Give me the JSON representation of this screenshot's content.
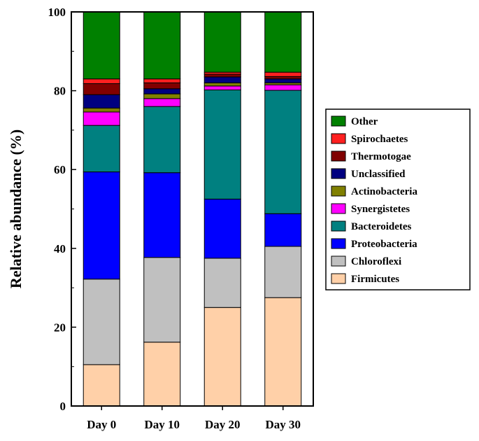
{
  "chart_data": {
    "type": "bar",
    "stacked": true,
    "ylabel": "Relative abundance (%)",
    "xlabel": "",
    "ylim": [
      0,
      100
    ],
    "yticks": [
      0,
      20,
      40,
      60,
      80,
      100
    ],
    "grid": false,
    "legend_position": "right",
    "categories": [
      "Day 0",
      "Day 10",
      "Day 20",
      "Day 30"
    ],
    "series": [
      {
        "name": "Firmicutes",
        "color": "#FFD0A8",
        "values": [
          10.5,
          16.2,
          25.0,
          27.5
        ]
      },
      {
        "name": "Chloroflexi",
        "color": "#C0C0C0",
        "values": [
          21.7,
          21.5,
          12.5,
          13.0
        ]
      },
      {
        "name": "Proteobacteria",
        "color": "#0000FF",
        "values": [
          27.2,
          21.5,
          15.0,
          8.3
        ]
      },
      {
        "name": "Bacteroidetes",
        "color": "#008080",
        "values": [
          11.8,
          16.8,
          27.7,
          31.3
        ]
      },
      {
        "name": "Synergistetes",
        "color": "#FF00FF",
        "values": [
          3.4,
          2.0,
          1.0,
          1.4
        ]
      },
      {
        "name": "Actinobacteria",
        "color": "#808000",
        "values": [
          1.0,
          1.2,
          0.8,
          0.5
        ]
      },
      {
        "name": "Unclassified",
        "color": "#000080",
        "values": [
          3.4,
          1.3,
          1.5,
          1.0
        ]
      },
      {
        "name": "Thermotogae",
        "color": "#800000",
        "values": [
          2.8,
          1.5,
          0.7,
          0.6
        ]
      },
      {
        "name": "Spirochaetes",
        "color": "#FF2020",
        "values": [
          1.2,
          1.0,
          0.5,
          1.1
        ]
      },
      {
        "name": "Other",
        "color": "#008000",
        "values": [
          17.0,
          17.0,
          15.3,
          15.3
        ]
      }
    ]
  }
}
